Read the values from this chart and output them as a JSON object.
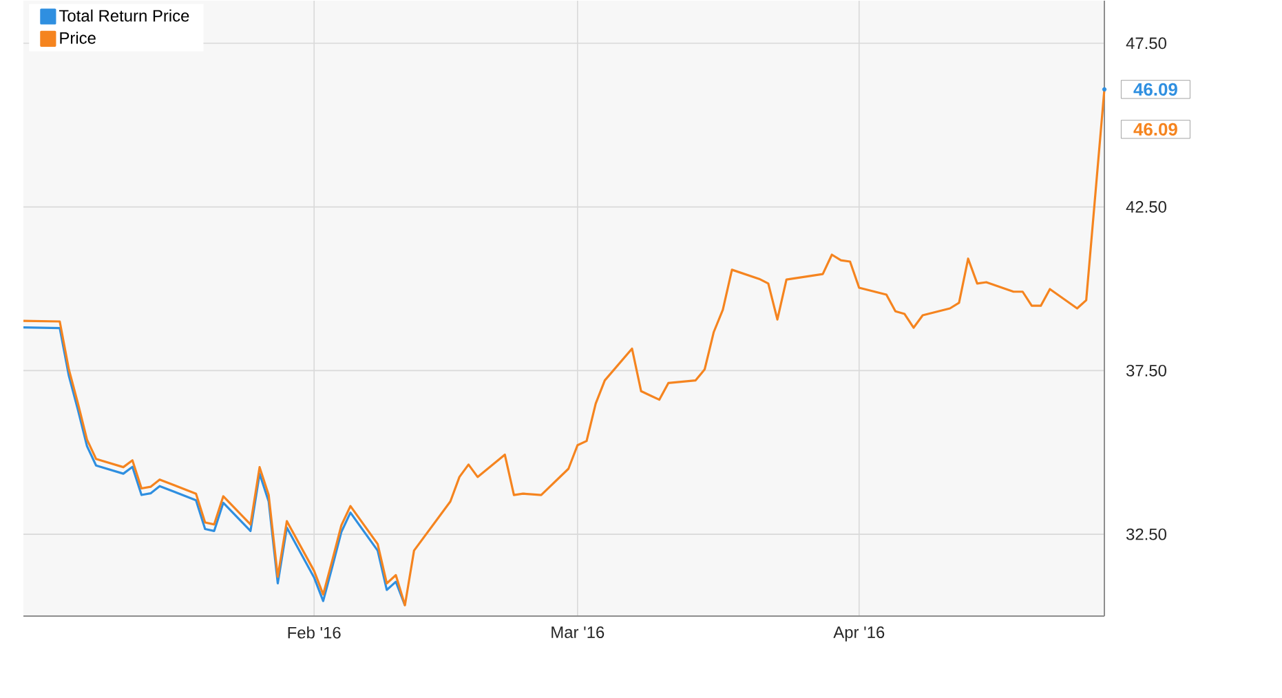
{
  "chart_data": {
    "type": "line",
    "x": [
      "2015-12-31",
      "2016-01-04",
      "2016-01-05",
      "2016-01-06",
      "2016-01-07",
      "2016-01-08",
      "2016-01-11",
      "2016-01-12",
      "2016-01-13",
      "2016-01-14",
      "2016-01-15",
      "2016-01-19",
      "2016-01-20",
      "2016-01-21",
      "2016-01-22",
      "2016-01-25",
      "2016-01-26",
      "2016-01-27",
      "2016-01-28",
      "2016-01-29",
      "2016-02-01",
      "2016-02-02",
      "2016-02-03",
      "2016-02-04",
      "2016-02-05",
      "2016-02-08",
      "2016-02-09",
      "2016-02-10",
      "2016-02-11",
      "2016-02-12",
      "2016-02-16",
      "2016-02-17",
      "2016-02-18",
      "2016-02-19",
      "2016-02-22",
      "2016-02-23",
      "2016-02-24",
      "2016-02-25",
      "2016-02-26",
      "2016-02-29",
      "2016-03-01",
      "2016-03-02",
      "2016-03-03",
      "2016-03-04",
      "2016-03-07",
      "2016-03-08",
      "2016-03-09",
      "2016-03-10",
      "2016-03-11",
      "2016-03-14",
      "2016-03-15",
      "2016-03-16",
      "2016-03-17",
      "2016-03-18",
      "2016-03-21",
      "2016-03-22",
      "2016-03-23",
      "2016-03-24",
      "2016-03-28",
      "2016-03-29",
      "2016-03-30",
      "2016-03-31",
      "2016-04-01",
      "2016-04-04",
      "2016-04-05",
      "2016-04-06",
      "2016-04-07",
      "2016-04-08",
      "2016-04-11",
      "2016-04-12",
      "2016-04-13",
      "2016-04-14",
      "2016-04-15",
      "2016-04-18",
      "2016-04-19",
      "2016-04-20",
      "2016-04-21",
      "2016-04-22",
      "2016-04-25",
      "2016-04-26",
      "2016-04-28"
    ],
    "series": [
      {
        "name": "Total Return Price",
        "color": "#2f8fe0",
        "values": [
          38.82,
          38.8,
          37.34,
          36.3,
          35.19,
          34.6,
          34.35,
          34.56,
          33.7,
          33.75,
          33.97,
          33.54,
          32.66,
          32.6,
          33.46,
          32.6,
          34.35,
          33.5,
          31.0,
          32.7,
          31.18,
          30.46,
          31.5,
          32.57,
          33.16,
          32.0,
          30.8,
          31.05,
          30.33,
          null,
          null,
          null,
          null,
          null,
          null,
          null,
          null,
          null,
          null,
          null,
          null,
          null,
          null,
          null,
          null,
          null,
          null,
          null,
          null,
          null,
          null,
          null,
          null,
          null,
          null,
          null,
          null,
          null,
          null,
          null,
          null,
          null,
          null,
          null,
          null,
          null,
          null,
          null,
          null,
          null,
          null,
          null,
          null,
          null,
          null,
          null,
          null,
          null,
          null,
          null,
          46.09
        ],
        "value_labels": [
          null,
          null,
          null,
          null,
          null,
          null,
          null,
          null,
          null,
          null,
          null,
          null,
          null,
          null,
          null,
          null,
          null,
          null,
          null,
          null,
          null,
          null,
          null,
          null,
          null,
          null,
          null,
          null,
          null,
          null,
          null,
          null,
          null,
          null,
          null,
          null,
          null,
          null,
          null,
          null,
          null,
          null,
          null,
          null,
          null,
          null,
          null,
          null,
          null,
          null,
          null,
          null,
          null,
          null,
          null,
          null,
          null,
          null,
          null,
          null,
          null,
          null,
          null,
          null,
          null,
          null,
          null,
          null,
          null,
          null,
          null,
          null,
          null,
          null,
          null,
          null,
          null,
          null,
          null,
          null,
          "46.09"
        ]
      },
      {
        "name": "Price",
        "color": "#f5841f",
        "values": [
          39.02,
          39.0,
          37.54,
          36.5,
          35.39,
          34.8,
          34.55,
          34.76,
          33.9,
          33.95,
          34.17,
          33.74,
          32.86,
          32.8,
          33.66,
          32.8,
          34.55,
          33.7,
          31.2,
          32.9,
          31.38,
          30.66,
          31.7,
          32.77,
          33.36,
          32.2,
          31.0,
          31.25,
          30.33,
          32.0,
          33.5,
          34.25,
          34.63,
          34.25,
          34.93,
          33.7,
          33.74,
          33.72,
          33.7,
          34.5,
          35.22,
          35.35,
          36.49,
          37.2,
          38.17,
          36.87,
          36.74,
          36.61,
          37.12,
          37.2,
          37.54,
          38.68,
          39.36,
          40.58,
          40.3,
          40.16,
          39.06,
          40.28,
          40.45,
          41.04,
          40.87,
          40.83,
          40.03,
          39.82,
          39.31,
          39.23,
          38.81,
          39.19,
          39.4,
          39.57,
          40.92,
          40.16,
          40.2,
          39.91,
          39.91,
          39.48,
          39.48,
          39.99,
          39.4,
          39.65,
          46.09
        ],
        "value_labels": [
          null,
          null,
          null,
          null,
          null,
          null,
          null,
          null,
          null,
          null,
          null,
          null,
          null,
          null,
          null,
          null,
          null,
          null,
          null,
          null,
          null,
          null,
          null,
          null,
          null,
          null,
          null,
          null,
          null,
          null,
          null,
          null,
          null,
          null,
          null,
          null,
          null,
          null,
          null,
          null,
          null,
          null,
          null,
          null,
          null,
          null,
          null,
          null,
          null,
          null,
          null,
          null,
          null,
          null,
          null,
          null,
          null,
          null,
          null,
          null,
          null,
          null,
          null,
          null,
          null,
          null,
          null,
          null,
          null,
          null,
          null,
          null,
          null,
          null,
          null,
          null,
          null,
          null,
          null,
          null,
          "46.09"
        ]
      }
    ],
    "xlim": [
      "2015-12-31",
      "2016-04-28"
    ],
    "xticks": [
      {
        "value": "2016-02-01",
        "label": "Feb '16"
      },
      {
        "value": "2016-03-01",
        "label": "Mar '16"
      },
      {
        "value": "2016-04-01",
        "label": "Apr '16"
      }
    ],
    "ylim": [
      30.0,
      48.8
    ],
    "yticks": [
      {
        "value": 32.5,
        "label": "32.50"
      },
      {
        "value": 37.5,
        "label": "37.50"
      },
      {
        "value": 42.5,
        "label": "42.50"
      },
      {
        "value": 47.5,
        "label": "47.50"
      }
    ],
    "grid": true,
    "legend": "top left",
    "marker": "none",
    "line_style": "solid"
  }
}
